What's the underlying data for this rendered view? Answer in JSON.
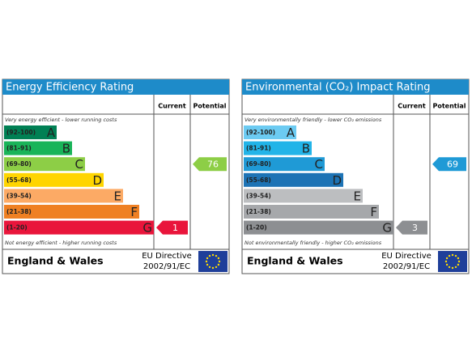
{
  "panels": [
    {
      "title": "Energy Efficiency Rating",
      "current_header": "Current",
      "potential_header": "Potential",
      "top_note": "Very energy efficient - lower running costs",
      "bottom_note": "Not energy efficient - higher running costs",
      "bands": [
        {
          "range": "(92-100)",
          "letter": "A",
          "color": "#008054"
        },
        {
          "range": "(81-91)",
          "letter": "B",
          "color": "#19b459"
        },
        {
          "range": "(69-80)",
          "letter": "C",
          "color": "#8dce46"
        },
        {
          "range": "(55-68)",
          "letter": "D",
          "color": "#ffd500"
        },
        {
          "range": "(39-54)",
          "letter": "E",
          "color": "#fcaa65"
        },
        {
          "range": "(21-38)",
          "letter": "F",
          "color": "#ef8023"
        },
        {
          "range": "(1-20)",
          "letter": "G",
          "color": "#e9153b"
        }
      ],
      "current": 1,
      "potential": 76,
      "region": "England & Wales",
      "directive": [
        "EU Directive",
        "2002/91/EC"
      ]
    },
    {
      "title": "Environmental (CO₂) Impact Rating",
      "current_header": "Current",
      "potential_header": "Potential",
      "top_note": "Very environmentally friendly - lower CO₂ emissions",
      "bottom_note": "Not environmentally friendly - higher CO₂ emissions",
      "bands": [
        {
          "range": "(92-100)",
          "letter": "A",
          "color": "#6ccbf2"
        },
        {
          "range": "(81-91)",
          "letter": "B",
          "color": "#22b4e8"
        },
        {
          "range": "(69-80)",
          "letter": "C",
          "color": "#1f9ad6"
        },
        {
          "range": "(55-68)",
          "letter": "D",
          "color": "#1d73b5"
        },
        {
          "range": "(39-54)",
          "letter": "E",
          "color": "#bcbec0"
        },
        {
          "range": "(21-38)",
          "letter": "F",
          "color": "#a6a8ab"
        },
        {
          "range": "(1-20)",
          "letter": "G",
          "color": "#8d8f92"
        }
      ],
      "current": 3,
      "potential": 69,
      "region": "England & Wales",
      "directive": [
        "EU Directive",
        "2002/91/EC"
      ]
    }
  ]
}
